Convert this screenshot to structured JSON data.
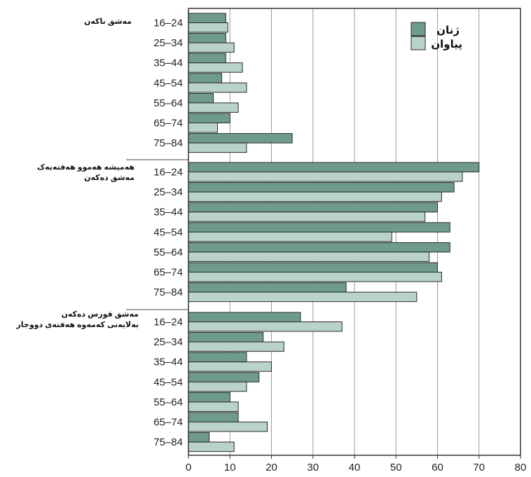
{
  "chart_data": {
    "type": "bar",
    "orientation": "horizontal",
    "xlim": [
      0,
      80
    ],
    "x_ticks": [
      "0",
      "10",
      "20",
      "30",
      "40",
      "50",
      "60",
      "70",
      "80"
    ],
    "grid": "vertical",
    "legend_position": "top-right",
    "colors": {
      "women": "#6f9c8a",
      "men": "#b9d3c8",
      "edge": "#2a2a2a"
    },
    "series": [
      {
        "key": "women",
        "name": "ژنان"
      },
      {
        "key": "men",
        "name": "پیاوان"
      }
    ],
    "groups": [
      {
        "label_lines": [
          "مەشق ناکەن"
        ],
        "rows": [
          {
            "age": "16–24",
            "women": 9,
            "men": 9.5
          },
          {
            "age": "25–34",
            "women": 9,
            "men": 11
          },
          {
            "age": "35–44",
            "women": 9,
            "men": 13
          },
          {
            "age": "45–54",
            "women": 8,
            "men": 14
          },
          {
            "age": "55–64",
            "women": 6,
            "men": 12
          },
          {
            "age": "65–74",
            "women": 10,
            "men": 7
          },
          {
            "age": "75–84",
            "women": 25,
            "men": 14
          }
        ]
      },
      {
        "label_lines": [
          "هەمیشە هەموو هەفتەیەک",
          "مەشق دەکەن"
        ],
        "rows": [
          {
            "age": "16–24",
            "women": 70,
            "men": 66
          },
          {
            "age": "25–34",
            "women": 64,
            "men": 61
          },
          {
            "age": "35–44",
            "women": 60,
            "men": 57
          },
          {
            "age": "45–54",
            "women": 63,
            "men": 49
          },
          {
            "age": "55–64",
            "women": 63,
            "men": 58
          },
          {
            "age": "65–74",
            "women": 60,
            "men": 61
          },
          {
            "age": "75–84",
            "women": 38,
            "men": 55
          }
        ]
      },
      {
        "label_lines": [
          "مەشق قورس دەکەن",
          "بەلایەنی کەمەوە هەفتەی دووجار"
        ],
        "rows": [
          {
            "age": "16–24",
            "women": 27,
            "men": 37
          },
          {
            "age": "25–34",
            "women": 18,
            "men": 23
          },
          {
            "age": "35–44",
            "women": 14,
            "men": 20
          },
          {
            "age": "45–54",
            "women": 17,
            "men": 14
          },
          {
            "age": "55–64",
            "women": 10,
            "men": 12
          },
          {
            "age": "65–74",
            "women": 12,
            "men": 19
          },
          {
            "age": "75–84",
            "women": 5,
            "men": 11
          }
        ]
      }
    ]
  }
}
